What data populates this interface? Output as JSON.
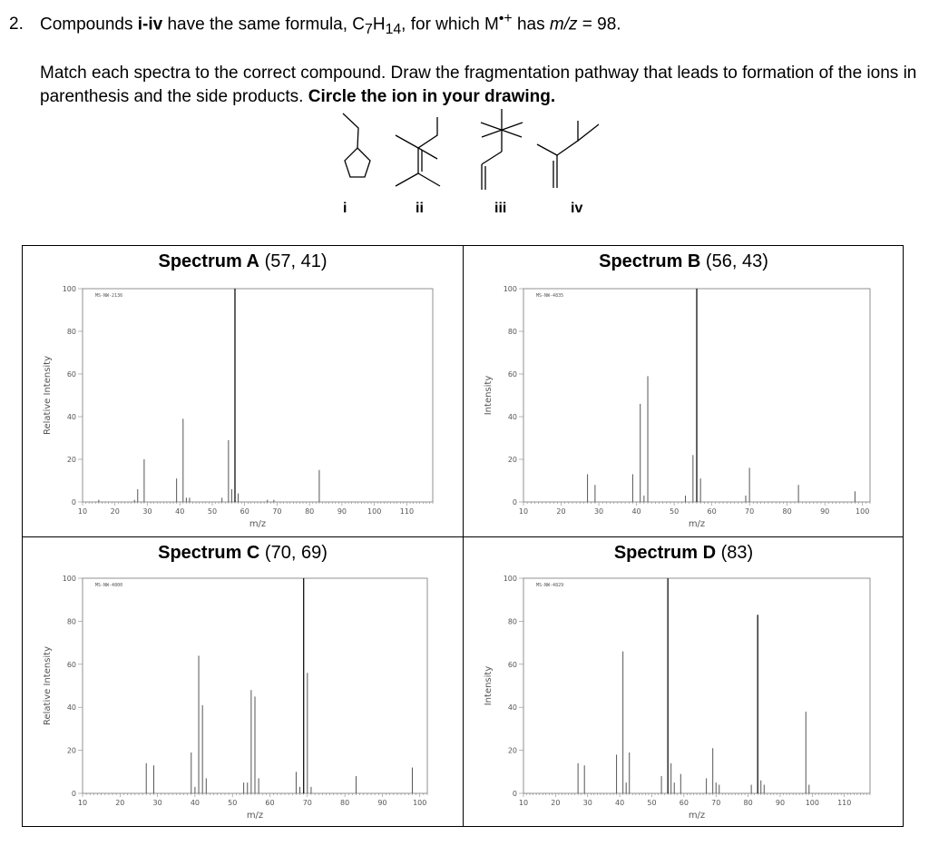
{
  "question": {
    "number": "2.",
    "t1": "Compounds ",
    "t2": "i-iv",
    "t3": " have the same formula, C",
    "sub7": "7",
    "t4": "H",
    "sub14": "14",
    "t5": ", for which M",
    "sup": "•+",
    "t6": " has ",
    "t7": "m/z",
    "t8": " = 98."
  },
  "instructions": {
    "text": "Match each spectra to the correct compound. Draw the fragmentation pathway that leads to formation of the ions in parenthesis and the side products. ",
    "bold": "Circle the ion in your drawing."
  },
  "compounds": [
    "i",
    "ii",
    "iii",
    "iv"
  ],
  "chart_data": [
    {
      "type": "bar",
      "title_bold": "Spectrum A",
      "title_rest": " (57, 41)",
      "source_label": "MS-NW-2136",
      "xlabel": "m/z",
      "ylabel": "Relative Intensity",
      "xlim": [
        10,
        118
      ],
      "ylim": [
        0,
        100
      ],
      "xticks": [
        10,
        20,
        30,
        40,
        50,
        60,
        70,
        80,
        90,
        100,
        110
      ],
      "yticks": [
        0,
        20,
        40,
        60,
        80,
        100
      ],
      "peaks": [
        [
          15,
          1
        ],
        [
          26,
          1
        ],
        [
          27,
          6
        ],
        [
          29,
          20
        ],
        [
          39,
          11
        ],
        [
          41,
          39
        ],
        [
          42,
          2
        ],
        [
          43,
          2
        ],
        [
          53,
          2
        ],
        [
          55,
          29
        ],
        [
          56,
          6
        ],
        [
          57,
          100
        ],
        [
          58,
          4
        ],
        [
          67,
          1
        ],
        [
          69,
          1
        ],
        [
          83,
          15
        ]
      ]
    },
    {
      "type": "bar",
      "title_bold": "Spectrum B",
      "title_rest": " (56, 43)",
      "source_label": "MS-NW-4835",
      "xlabel": "m/z",
      "ylabel": "Intensity",
      "xlim": [
        10,
        102
      ],
      "ylim": [
        0,
        100
      ],
      "xticks": [
        10,
        20,
        30,
        40,
        50,
        60,
        70,
        80,
        90,
        100
      ],
      "yticks": [
        0,
        20,
        40,
        60,
        80,
        100
      ],
      "peaks": [
        [
          27,
          13
        ],
        [
          29,
          8
        ],
        [
          39,
          13
        ],
        [
          41,
          46
        ],
        [
          42,
          3
        ],
        [
          43,
          59
        ],
        [
          53,
          3
        ],
        [
          55,
          22
        ],
        [
          56,
          100
        ],
        [
          57,
          11
        ],
        [
          69,
          3
        ],
        [
          70,
          16
        ],
        [
          83,
          8
        ],
        [
          98,
          5
        ]
      ]
    },
    {
      "type": "bar",
      "title_bold": "Spectrum C",
      "title_rest": " (70, 69)",
      "source_label": "MS-NW-4800",
      "xlabel": "m/z",
      "ylabel": "Relative Intensity",
      "xlim": [
        10,
        102
      ],
      "ylim": [
        0,
        100
      ],
      "xticks": [
        10,
        20,
        30,
        40,
        50,
        60,
        70,
        80,
        90,
        100
      ],
      "yticks": [
        0,
        20,
        40,
        60,
        80,
        100
      ],
      "peaks": [
        [
          27,
          14
        ],
        [
          29,
          13
        ],
        [
          39,
          19
        ],
        [
          40,
          3
        ],
        [
          41,
          64
        ],
        [
          42,
          41
        ],
        [
          43,
          7
        ],
        [
          53,
          5
        ],
        [
          54,
          5
        ],
        [
          55,
          48
        ],
        [
          56,
          45
        ],
        [
          57,
          7
        ],
        [
          67,
          10
        ],
        [
          68,
          3
        ],
        [
          69,
          100
        ],
        [
          70,
          56
        ],
        [
          71,
          3
        ],
        [
          83,
          8
        ],
        [
          98,
          12
        ]
      ]
    },
    {
      "type": "bar",
      "title_bold": "Spectrum D",
      "title_rest": " (83)",
      "source_label": "MS-NW-4829",
      "xlabel": "m/z",
      "ylabel": "Intensity",
      "xlim": [
        10,
        118
      ],
      "ylim": [
        0,
        100
      ],
      "xticks": [
        10,
        20,
        30,
        40,
        50,
        60,
        70,
        80,
        90,
        100,
        110
      ],
      "yticks": [
        0,
        20,
        40,
        60,
        80,
        100
      ],
      "peaks": [
        [
          27,
          14
        ],
        [
          29,
          13
        ],
        [
          39,
          18
        ],
        [
          41,
          66
        ],
        [
          42,
          5
        ],
        [
          43,
          19
        ],
        [
          53,
          8
        ],
        [
          55,
          100
        ],
        [
          56,
          14
        ],
        [
          57,
          5
        ],
        [
          59,
          9
        ],
        [
          67,
          7
        ],
        [
          69,
          21
        ],
        [
          70,
          5
        ],
        [
          71,
          4
        ],
        [
          81,
          4
        ],
        [
          83,
          83
        ],
        [
          84,
          6
        ],
        [
          85,
          4
        ],
        [
          98,
          38
        ],
        [
          99,
          4
        ]
      ]
    }
  ]
}
